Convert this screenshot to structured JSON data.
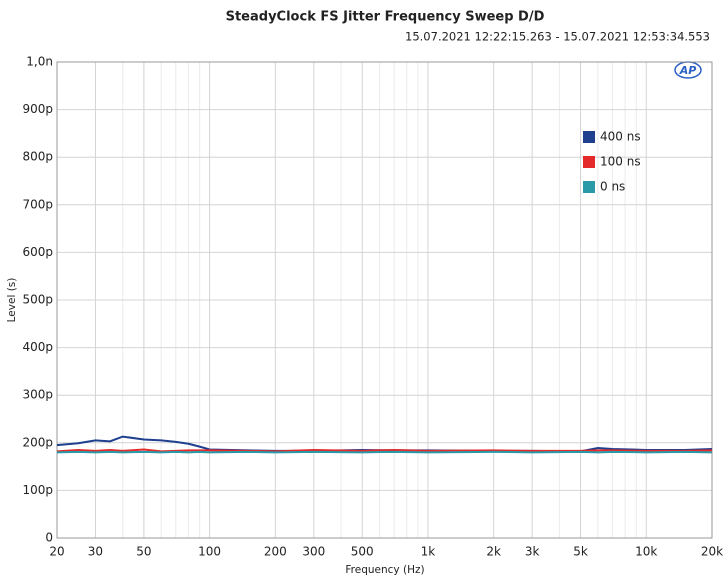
{
  "chart_data": {
    "type": "line",
    "title": "SteadyClock FS Jitter Frequency Sweep D/D",
    "subtitle": "15.07.2021 12:22:15.263 - 15.07.2021 12:53:34.553",
    "logo": "AP",
    "x_label": "Frequency (Hz)",
    "y_label": "Level (s)",
    "x_scale": "log",
    "grid": true,
    "legend_position": "upper right",
    "x": [
      20,
      25,
      30,
      35,
      40,
      50,
      60,
      70,
      80,
      90,
      100,
      150,
      200,
      300,
      500,
      700,
      1000,
      2000,
      3000,
      5000,
      6000,
      7000,
      10000,
      15000,
      20000
    ],
    "series": [
      {
        "name": "400 ns",
        "color": "#1f3f8f",
        "values": [
          1.95e-10,
          1.99e-10,
          2.05e-10,
          2.03e-10,
          2.13e-10,
          2.07e-10,
          2.05e-10,
          2.02e-10,
          1.98e-10,
          1.92e-10,
          1.86e-10,
          1.84e-10,
          1.83e-10,
          1.83e-10,
          1.85e-10,
          1.84e-10,
          1.84e-10,
          1.83e-10,
          1.83e-10,
          1.82e-10,
          1.89e-10,
          1.87e-10,
          1.85e-10,
          1.85e-10,
          1.87e-10
        ]
      },
      {
        "name": "100 ns",
        "color": "#e42a2a",
        "values": [
          1.82e-10,
          1.85e-10,
          1.83e-10,
          1.85e-10,
          1.83e-10,
          1.86e-10,
          1.82e-10,
          1.83e-10,
          1.84e-10,
          1.84e-10,
          1.84e-10,
          1.83e-10,
          1.82e-10,
          1.85e-10,
          1.83e-10,
          1.85e-10,
          1.83e-10,
          1.84e-10,
          1.83e-10,
          1.83e-10,
          1.84e-10,
          1.84e-10,
          1.83e-10,
          1.83e-10,
          1.84e-10
        ]
      },
      {
        "name": "0 ns",
        "color": "#2a9aa8",
        "values": [
          1.8e-10,
          1.81e-10,
          1.8e-10,
          1.81e-10,
          1.8e-10,
          1.81e-10,
          1.8e-10,
          1.81e-10,
          1.8e-10,
          1.81e-10,
          1.8e-10,
          1.81e-10,
          1.8e-10,
          1.81e-10,
          1.8e-10,
          1.81e-10,
          1.8e-10,
          1.81e-10,
          1.8e-10,
          1.81e-10,
          1.8e-10,
          1.81e-10,
          1.8e-10,
          1.81e-10,
          1.8e-10
        ]
      }
    ],
    "xlim": [
      20,
      20000
    ],
    "ylim": [
      0,
      1e-09
    ],
    "xticks": [
      20,
      30,
      50,
      100,
      200,
      300,
      500,
      {
        "value": 1000,
        "label": "1k"
      },
      {
        "value": 2000,
        "label": "2k"
      },
      {
        "value": 3000,
        "label": "3k"
      },
      {
        "value": 5000,
        "label": "5k"
      },
      {
        "value": 10000,
        "label": "10k"
      },
      {
        "value": 20000,
        "label": "20k"
      }
    ],
    "minor_xticks": [
      40,
      60,
      70,
      80,
      90,
      400,
      600,
      700,
      800,
      900,
      4000,
      6000,
      7000,
      8000,
      9000
    ],
    "yticks": [
      0,
      {
        "value": 1e-10,
        "label": "100p"
      },
      {
        "value": 2e-10,
        "label": "200p"
      },
      {
        "value": 3e-10,
        "label": "300p"
      },
      {
        "value": 4e-10,
        "label": "400p"
      },
      {
        "value": 5e-10,
        "label": "500p"
      },
      {
        "value": 6e-10,
        "label": "600p"
      },
      {
        "value": 7e-10,
        "label": "700p"
      },
      {
        "value": 8e-10,
        "label": "800p"
      },
      {
        "value": 9e-10,
        "label": "900p"
      },
      {
        "value": 1e-09,
        "label": "1,0n"
      }
    ]
  }
}
